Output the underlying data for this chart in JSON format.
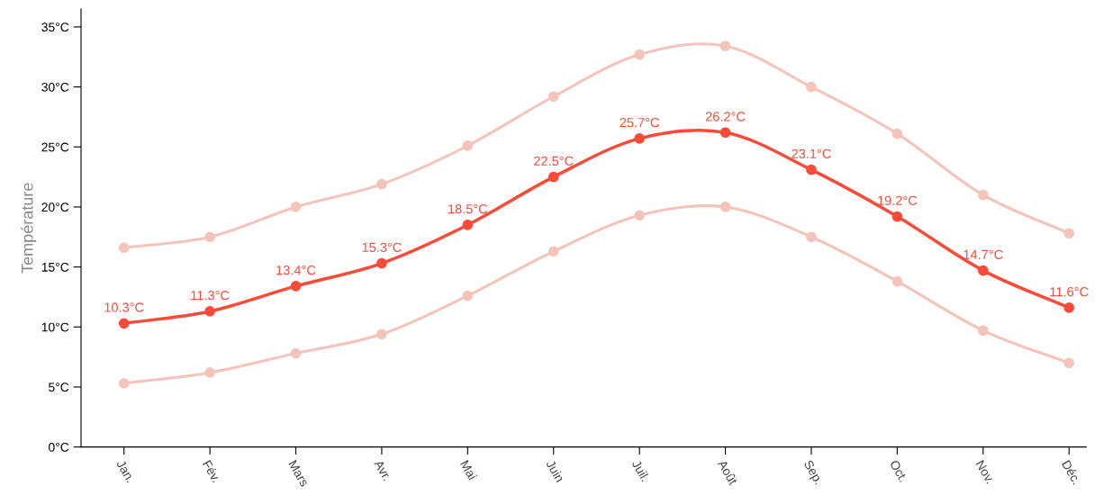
{
  "chart_data": {
    "type": "line",
    "ylabel": "Température",
    "categories": [
      "Jan.",
      "Fév.",
      "Mars",
      "Avr.",
      "Mai",
      "Juin",
      "Juil.",
      "Août",
      "Sep.",
      "Oct.",
      "Nov.",
      "Déc."
    ],
    "ylim": [
      0,
      36.5
    ],
    "yticks": [
      {
        "value": 0,
        "label": "0°C"
      },
      {
        "value": 5,
        "label": "5°C"
      },
      {
        "value": 10,
        "label": "10°C"
      },
      {
        "value": 15,
        "label": "15°C"
      },
      {
        "value": 20,
        "label": "20°C"
      },
      {
        "value": 25,
        "label": "25°C"
      },
      {
        "value": 30,
        "label": "30°C"
      },
      {
        "value": 35,
        "label": "35°C"
      }
    ],
    "grid": false,
    "marker": "circle",
    "line_style": "solid",
    "series": [
      {
        "color": "#f4c3ba",
        "values": [
          16.6,
          17.5,
          20.0,
          21.9,
          25.1,
          29.2,
          32.7,
          33.4,
          30.0,
          26.1,
          21.0,
          17.8
        ]
      },
      {
        "color": "#f4c3ba",
        "values": [
          5.3,
          6.2,
          7.8,
          9.4,
          12.6,
          16.3,
          19.3,
          20.0,
          17.5,
          13.8,
          9.7,
          7.0
        ]
      },
      {
        "color": "#fa4a38",
        "values": [
          10.3,
          11.3,
          13.4,
          15.3,
          18.5,
          22.5,
          25.7,
          26.2,
          23.1,
          19.2,
          14.7,
          11.6
        ],
        "value_labels": [
          "10.3°C",
          "11.3°C",
          "13.4°C",
          "15.3°C",
          "18.5°C",
          "22.5°C",
          "25.7°C",
          "26.2°C",
          "23.1°C",
          "19.2°C",
          "14.7°C",
          "11.6°C"
        ]
      }
    ]
  }
}
